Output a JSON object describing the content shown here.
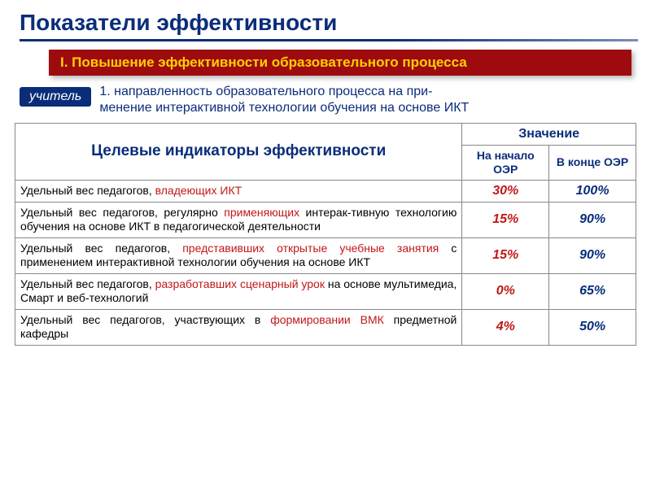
{
  "title": "Показатели эффективности",
  "section_bar": "I. Повышение эффективности образовательного процесса",
  "teacher_tag": "учитель",
  "sub_desc_prefix": "1. направленность образовательного процесса на при-",
  "sub_desc_suffix": "менение интерактивной технологии обучения на основе ИКТ",
  "colors": {
    "title": "#0a2d7a",
    "section_bg": "#9d0b0e",
    "section_text": "#ffd000",
    "highlight": "#c01818",
    "val_start": "#c01818",
    "val_end": "#0a2d7a",
    "border": "#888888",
    "background": "#ffffff"
  },
  "typography": {
    "title_fontsize": 28,
    "section_fontsize": 17,
    "sub_desc_fontsize": 16,
    "th_main_fontsize": 19,
    "th_sub_fontsize": 14,
    "cell_fontsize": 14,
    "val_fontsize": 16
  },
  "table": {
    "header_main": "Целевые индикаторы эффективности",
    "header_value_group": "Значение",
    "header_start": "На начало ОЭР",
    "header_end": "В конце ОЭР",
    "col_widths": {
      "indicator_pct": 72,
      "val_pct": 14
    },
    "rows": [
      {
        "text_parts": [
          "Удельный вес педагогов, ",
          "владеющих ИКТ",
          ""
        ],
        "start": "30%",
        "end": "100%"
      },
      {
        "text_parts": [
          "Удельный вес педагогов, регулярно ",
          "применяющих",
          " интерак-тивную технологию обучения на основе ИКТ в педагогической деятельности"
        ],
        "start": "15%",
        "end": "90%"
      },
      {
        "text_parts": [
          "Удельный вес педагогов, ",
          "представивших открытые учебные занятия",
          " с применением интерактивной технологии обучения на основе ИКТ"
        ],
        "start": "15%",
        "end": "90%"
      },
      {
        "text_parts": [
          "Удельный вес педагогов, ",
          "разработавших сценарный урок",
          " на основе мультимедиа, Смарт и веб-технологий"
        ],
        "start": "0%",
        "end": "65%"
      },
      {
        "text_parts": [
          "Удельный вес педагогов, участвующих в ",
          "формировании ВМК",
          " предметной кафедры"
        ],
        "start": "4%",
        "end": "50%"
      }
    ]
  }
}
